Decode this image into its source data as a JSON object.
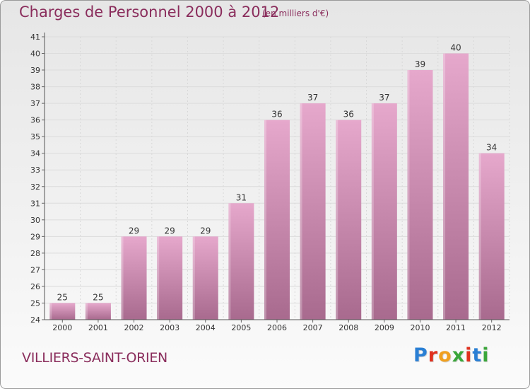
{
  "title": "Charges de Personnel 2000 à 2012",
  "subtitle": "(en milliers d'€)",
  "city": "VILLIERS-SAINT-ORIEN",
  "logo": {
    "letters": [
      "P",
      "r",
      "o",
      "x",
      "i",
      "t",
      "i"
    ],
    "colors": [
      "#2a7fd4",
      "#e0301e",
      "#f0a020",
      "#3aa63a",
      "#e0301e",
      "#2a7fd4",
      "#3aa63a"
    ]
  },
  "colors": {
    "bar_top": "#e6a8cc",
    "bar_bottom": "#a86a8e",
    "text": "#8a2d5c"
  },
  "chart_data": {
    "type": "bar",
    "title": "Charges de Personnel 2000 à 2012",
    "subtitle": "(en milliers d'€)",
    "categories": [
      "2000",
      "2001",
      "2002",
      "2003",
      "2004",
      "2005",
      "2006",
      "2007",
      "2008",
      "2009",
      "2010",
      "2011",
      "2012"
    ],
    "values": [
      25,
      25,
      29,
      29,
      29,
      31,
      36,
      37,
      36,
      37,
      39,
      40,
      34
    ],
    "data_labels": [
      "25",
      "25",
      "29",
      "29",
      "29",
      "31",
      "36",
      "37",
      "36",
      "37",
      "39",
      "40",
      "34"
    ],
    "ylim": [
      24,
      41
    ],
    "yticks": [
      "24",
      "25",
      "26",
      "27",
      "28",
      "29",
      "30",
      "31",
      "32",
      "33",
      "34",
      "35",
      "36",
      "37",
      "38",
      "39",
      "40",
      "41"
    ],
    "grid": true,
    "legend": "none"
  }
}
